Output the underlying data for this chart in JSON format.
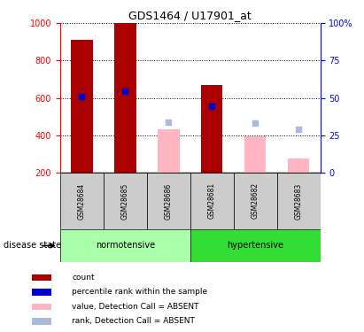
{
  "title": "GDS1464 / U17901_at",
  "samples": [
    "GSM28684",
    "GSM28685",
    "GSM28686",
    "GSM28681",
    "GSM28682",
    "GSM28683"
  ],
  "count_values": [
    910,
    1000,
    null,
    670,
    null,
    null
  ],
  "percentile_values": [
    610,
    635,
    null,
    555,
    null,
    null
  ],
  "absent_value_values": [
    null,
    null,
    430,
    null,
    395,
    275
  ],
  "absent_rank_values": [
    null,
    null,
    470,
    null,
    465,
    430
  ],
  "ylim_left": [
    200,
    1000
  ],
  "ylim_right": [
    0,
    100
  ],
  "yticks_left": [
    200,
    400,
    600,
    800,
    1000
  ],
  "yticks_right": [
    0,
    25,
    50,
    75,
    100
  ],
  "ytick_right_labels": [
    "0",
    "25",
    "50",
    "75",
    "100%"
  ],
  "count_color": "#AA0000",
  "percentile_color": "#0000CC",
  "absent_value_color": "#FFB6C1",
  "absent_rank_color": "#AABBDD",
  "normotensive_color": "#AAFFAA",
  "hypertensive_color": "#33DD33",
  "sample_box_color": "#CCCCCC",
  "legend_items": [
    {
      "label": "count",
      "color": "#AA0000"
    },
    {
      "label": "percentile rank within the sample",
      "color": "#0000CC"
    },
    {
      "label": "value, Detection Call = ABSENT",
      "color": "#FFB6C1"
    },
    {
      "label": "rank, Detection Call = ABSENT",
      "color": "#AABBDD"
    }
  ],
  "disease_state_label": "disease state"
}
